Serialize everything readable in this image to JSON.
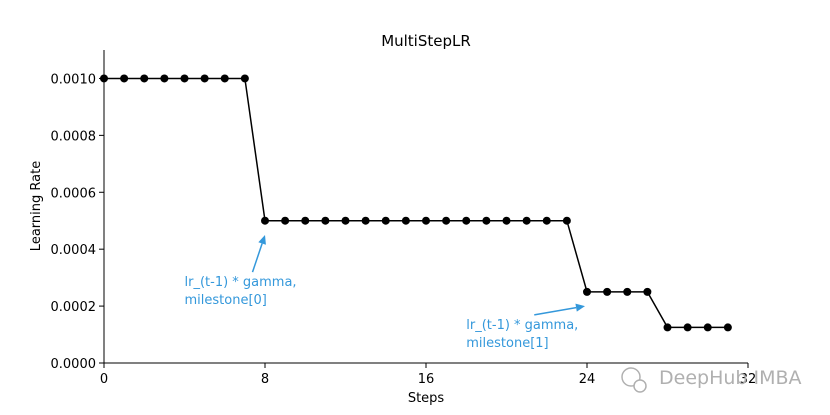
{
  "chart_data": {
    "type": "line",
    "title": "MultiStepLR",
    "xlabel": "Steps",
    "ylabel": "Learning Rate",
    "xlim": [
      0,
      32
    ],
    "ylim": [
      0,
      0.0011
    ],
    "x_ticks": [
      {
        "value": 0,
        "label": "0"
      },
      {
        "value": 8,
        "label": "8"
      },
      {
        "value": 16,
        "label": "16"
      },
      {
        "value": 24,
        "label": "24"
      },
      {
        "value": 32,
        "label": "32"
      }
    ],
    "y_ticks": [
      {
        "value": 0,
        "label": "0.0000"
      },
      {
        "value": 0.0002,
        "label": "0.0002"
      },
      {
        "value": 0.0004,
        "label": "0.0004"
      },
      {
        "value": 0.0006,
        "label": "0.0006"
      },
      {
        "value": 0.0008,
        "label": "0.0008"
      },
      {
        "value": 0.001,
        "label": "0.0010"
      }
    ],
    "grid": false,
    "series": [
      {
        "color": "#000000",
        "marker": "circle",
        "x": [
          0,
          1,
          2,
          3,
          4,
          5,
          6,
          7,
          8,
          9,
          10,
          11,
          12,
          13,
          14,
          15,
          16,
          17,
          18,
          19,
          20,
          21,
          22,
          23,
          24,
          25,
          26,
          27,
          28,
          29,
          30,
          31
        ],
        "y": [
          0.001,
          0.001,
          0.001,
          0.001,
          0.001,
          0.001,
          0.001,
          0.001,
          0.0005,
          0.0005,
          0.0005,
          0.0005,
          0.0005,
          0.0005,
          0.0005,
          0.0005,
          0.0005,
          0.0005,
          0.0005,
          0.0005,
          0.0005,
          0.0005,
          0.0005,
          0.0005,
          0.00025,
          0.00025,
          0.00025,
          0.00025,
          0.000125,
          0.000125,
          0.000125,
          0.000125
        ]
      }
    ],
    "annotations": [
      {
        "lines": [
          "lr_(t-1) * gamma,",
          "milestone[0]"
        ],
        "color": "#3498db",
        "point": {
          "x": 8,
          "y": 0.00045
        },
        "text_pos": {
          "x": 4,
          "y": 0.00027
        }
      },
      {
        "lines": [
          "lr_(t-1) * gamma,",
          "milestone[1]"
        ],
        "color": "#3498db",
        "point": {
          "x": 23.9,
          "y": 0.0002
        },
        "text_pos": {
          "x": 18,
          "y": 0.00012
        }
      }
    ]
  },
  "watermark": {
    "text": "DeepHub IMBA",
    "color": "#b0b0b0"
  }
}
